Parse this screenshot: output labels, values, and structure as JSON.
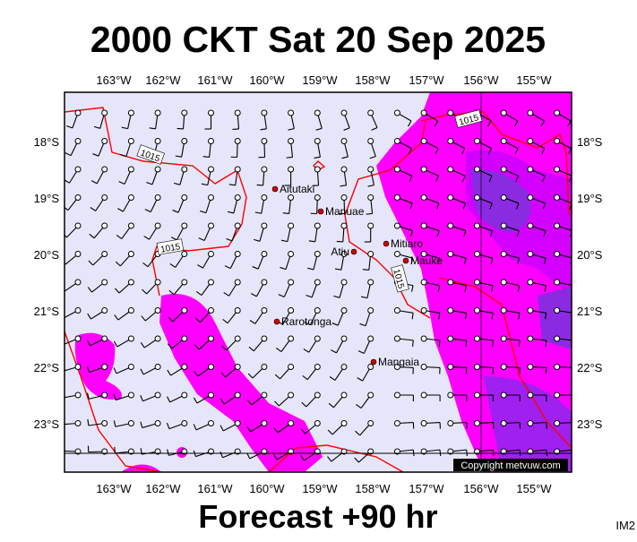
{
  "header": {
    "title": "2000 CKT Sat 20 Sep 2025"
  },
  "footer": {
    "forecast": "Forecast +90 hr",
    "image_id": "IM2"
  },
  "map": {
    "lon_ticks": [
      "163°W",
      "162°W",
      "161°W",
      "160°W",
      "159°W",
      "158°W",
      "157°W",
      "156°W",
      "155°W"
    ],
    "lat_ticks": [
      "18°S",
      "19°S",
      "20°S",
      "21°S",
      "22°S",
      "23°S"
    ],
    "places": [
      "Aitutaki",
      "Manuae",
      "Atiu",
      "Mitiaro",
      "Mauke",
      "Rarotonga",
      "Mangaia"
    ],
    "isobar_labels": [
      "1015",
      "1015",
      "1015",
      "1015"
    ],
    "copyright": "Copyright metvuw.com"
  }
}
